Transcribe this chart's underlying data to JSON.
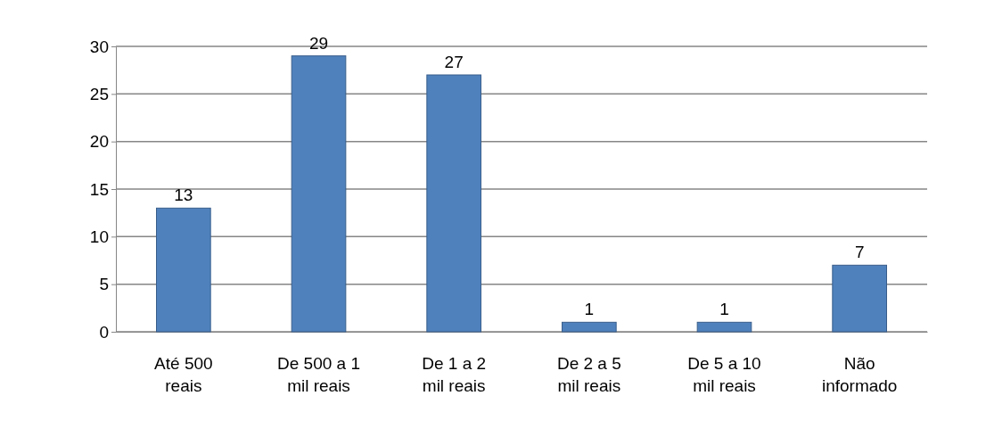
{
  "chart_data": {
    "type": "bar",
    "categories": [
      "Até 500 reais",
      "De 500 a 1 mil reais",
      "De 1 a 2 mil reais",
      "De 2 a 5 mil reais",
      "De 5 a 10 mil reais",
      "Não informado"
    ],
    "values": [
      13,
      29,
      27,
      1,
      1,
      7
    ],
    "color": "#4f81bd",
    "ylim": [
      0,
      30
    ],
    "yticks": [
      0,
      5,
      10,
      15,
      20,
      25,
      30
    ],
    "grid": "y",
    "data_labels": true
  }
}
